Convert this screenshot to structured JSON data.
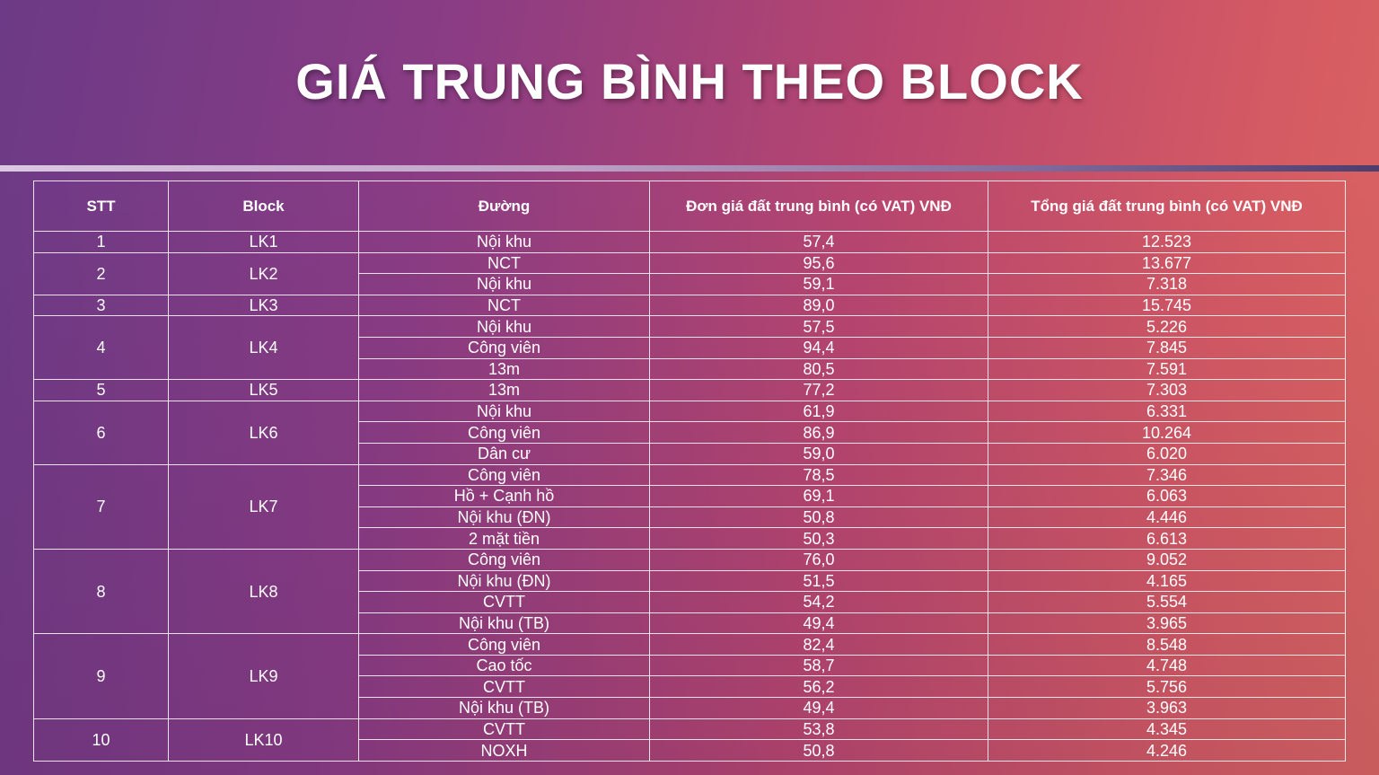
{
  "title": "GIÁ TRUNG BÌNH THEO BLOCK",
  "colors": {
    "title": "#ffffff",
    "gradient_start": "#6c3a86",
    "gradient_end": "#dc6660",
    "table_border": "#ffffff"
  },
  "table": {
    "headers": [
      "STT",
      "Block",
      "Đường",
      "Đơn giá đất trung bình (có VAT) VNĐ",
      "Tổng giá đất trung bình (có VAT) VNĐ"
    ],
    "groups": [
      {
        "stt": "1",
        "block": "LK1",
        "rows": [
          {
            "street": "Nội khu",
            "unit_price": "57,4",
            "total_price": "12.523"
          }
        ]
      },
      {
        "stt": "2",
        "block": "LK2",
        "rows": [
          {
            "street": "NCT",
            "unit_price": "95,6",
            "total_price": "13.677"
          },
          {
            "street": "Nội khu",
            "unit_price": "59,1",
            "total_price": "7.318"
          }
        ]
      },
      {
        "stt": "3",
        "block": "LK3",
        "rows": [
          {
            "street": "NCT",
            "unit_price": "89,0",
            "total_price": "15.745"
          }
        ]
      },
      {
        "stt": "4",
        "block": "LK4",
        "rows": [
          {
            "street": "Nội khu",
            "unit_price": "57,5",
            "total_price": "5.226"
          },
          {
            "street": "Công viên",
            "unit_price": "94,4",
            "total_price": "7.845"
          },
          {
            "street": "13m",
            "unit_price": "80,5",
            "total_price": "7.591"
          }
        ]
      },
      {
        "stt": "5",
        "block": "LK5",
        "rows": [
          {
            "street": "13m",
            "unit_price": "77,2",
            "total_price": "7.303"
          }
        ]
      },
      {
        "stt": "6",
        "block": "LK6",
        "rows": [
          {
            "street": "Nội khu",
            "unit_price": "61,9",
            "total_price": "6.331"
          },
          {
            "street": "Công viên",
            "unit_price": "86,9",
            "total_price": "10.264"
          },
          {
            "street": "Dân cư",
            "unit_price": "59,0",
            "total_price": "6.020"
          }
        ]
      },
      {
        "stt": "7",
        "block": "LK7",
        "rows": [
          {
            "street": "Công viên",
            "unit_price": "78,5",
            "total_price": "7.346"
          },
          {
            "street": "Hồ + Cạnh hồ",
            "unit_price": "69,1",
            "total_price": "6.063"
          },
          {
            "street": "Nội khu (ĐN)",
            "unit_price": "50,8",
            "total_price": "4.446"
          },
          {
            "street": "2 mặt tiền",
            "unit_price": "50,3",
            "total_price": "6.613"
          }
        ]
      },
      {
        "stt": "8",
        "block": "LK8",
        "rows": [
          {
            "street": "Công viên",
            "unit_price": "76,0",
            "total_price": "9.052"
          },
          {
            "street": "Nội khu (ĐN)",
            "unit_price": "51,5",
            "total_price": "4.165"
          },
          {
            "street": "CVTT",
            "unit_price": "54,2",
            "total_price": "5.554"
          },
          {
            "street": "Nội khu (TB)",
            "unit_price": "49,4",
            "total_price": "3.965"
          }
        ]
      },
      {
        "stt": "9",
        "block": "LK9",
        "rows": [
          {
            "street": "Công viên",
            "unit_price": "82,4",
            "total_price": "8.548"
          },
          {
            "street": "Cao tốc",
            "unit_price": "58,7",
            "total_price": "4.748"
          },
          {
            "street": "CVTT",
            "unit_price": "56,2",
            "total_price": "5.756"
          },
          {
            "street": "Nội khu (TB)",
            "unit_price": "49,4",
            "total_price": "3.963"
          }
        ]
      },
      {
        "stt": "10",
        "block": "LK10",
        "rows": [
          {
            "street": "CVTT",
            "unit_price": "53,8",
            "total_price": "4.345"
          },
          {
            "street": "NOXH",
            "unit_price": "50,8",
            "total_price": "4.246"
          }
        ]
      }
    ]
  }
}
